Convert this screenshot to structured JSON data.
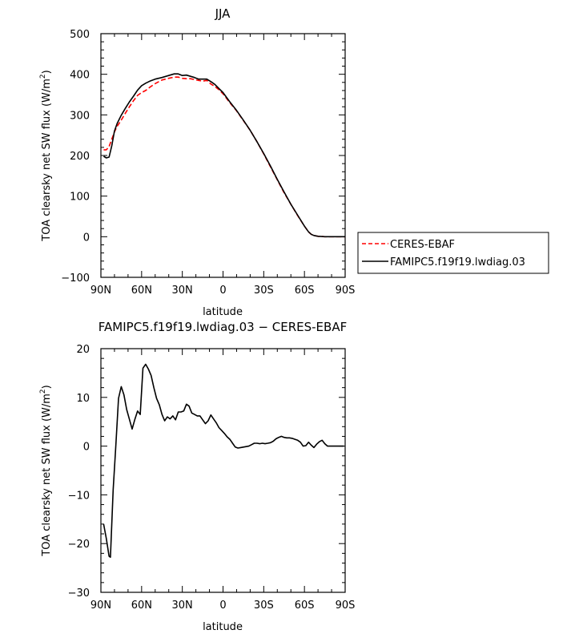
{
  "chart_data": [
    {
      "type": "line",
      "title": "JJA",
      "xlabel": "latitude",
      "ylabel_main": "TOA clearsky net SW flux (W/m",
      "ylabel_sup": "2",
      "ylabel_end": ")",
      "xlim": [
        90,
        -90
      ],
      "ylim": [
        -100,
        500
      ],
      "xticks": [
        90,
        60,
        30,
        0,
        -30,
        -60,
        -90
      ],
      "xtick_labels": [
        "90N",
        "60N",
        "30N",
        "0",
        "30S",
        "60S",
        "90S"
      ],
      "yticks": [
        -100,
        0,
        100,
        200,
        300,
        400,
        500
      ],
      "ytick_labels": [
        "−100",
        "0",
        "100",
        "200",
        "300",
        "400",
        "500"
      ],
      "legend": "right, outside",
      "series": [
        {
          "name": "CERES-EBAF",
          "color": "#ff0000",
          "dash": "dashed",
          "x": [
            88,
            86,
            84,
            82,
            80,
            78,
            75,
            72,
            69,
            66,
            63,
            60,
            57,
            54,
            50,
            45,
            40,
            36,
            33,
            30,
            27,
            24,
            21,
            18,
            15,
            12,
            9,
            6,
            3,
            0,
            -5,
            -10,
            -15,
            -20,
            -25,
            -30,
            -35,
            -40,
            -45,
            -50,
            -55,
            -60,
            -63,
            -65,
            -67,
            -70,
            -75,
            -80,
            -85,
            -90
          ],
          "y": [
            214,
            214,
            222,
            240,
            258,
            272,
            287,
            304,
            320,
            335,
            348,
            355,
            360,
            368,
            377,
            386,
            390,
            393,
            393,
            390,
            389,
            389,
            387,
            385,
            383,
            385,
            376,
            370,
            362,
            352,
            330,
            310,
            286,
            262,
            234,
            204,
            172,
            140,
            108,
            80,
            52,
            26,
            12,
            6,
            3,
            1,
            0,
            0,
            0,
            0
          ]
        },
        {
          "name": "FAMIPC5.f19f19.lwdiag.03",
          "color": "#000000",
          "dash": "solid",
          "x": [
            88,
            86,
            84,
            82,
            80,
            78,
            75,
            72,
            69,
            66,
            63,
            60,
            57,
            54,
            50,
            45,
            40,
            36,
            33,
            30,
            27,
            24,
            21,
            18,
            15,
            12,
            9,
            6,
            3,
            0,
            -5,
            -10,
            -15,
            -20,
            -25,
            -30,
            -35,
            -40,
            -45,
            -50,
            -55,
            -60,
            -63,
            -65,
            -67,
            -70,
            -75,
            -80,
            -85,
            -90
          ],
          "y": [
            198,
            194,
            196,
            224,
            260,
            279,
            299,
            316,
            332,
            346,
            361,
            372,
            378,
            383,
            388,
            392,
            397,
            401,
            401,
            397,
            398,
            395,
            392,
            388,
            388,
            388,
            382,
            375,
            365,
            355,
            332,
            311,
            287,
            262,
            234,
            205,
            174,
            141,
            110,
            80,
            53,
            26,
            12,
            6,
            3,
            1,
            0,
            0,
            0,
            0
          ]
        }
      ]
    },
    {
      "type": "line",
      "title": "FAMIPC5.f19f19.lwdiag.03 − CERES-EBAF",
      "xlabel": "latitude",
      "ylabel_main": "TOA clearsky net SW flux (W/m",
      "ylabel_sup": "2",
      "ylabel_end": ")",
      "xlim": [
        90,
        -90
      ],
      "ylim": [
        -30,
        20
      ],
      "xticks": [
        90,
        60,
        30,
        0,
        -30,
        -60,
        -90
      ],
      "xtick_labels": [
        "90N",
        "60N",
        "30N",
        "0",
        "30S",
        "60S",
        "90S"
      ],
      "yticks": [
        -30,
        -20,
        -10,
        0,
        10,
        20
      ],
      "ytick_labels": [
        "−30",
        "−20",
        "−10",
        "0",
        "10",
        "20"
      ],
      "series": [
        {
          "name": "",
          "color": "#000000",
          "dash": "solid",
          "x": [
            88,
            86,
            84,
            83,
            81,
            79,
            77,
            75,
            73,
            71,
            69,
            67,
            65,
            63,
            61,
            59,
            57,
            55,
            53,
            51,
            49,
            47,
            45,
            43,
            41,
            39,
            37,
            35,
            33,
            31,
            29,
            27,
            25,
            23,
            21,
            19,
            17,
            15,
            13,
            11,
            9,
            7,
            5,
            3,
            1,
            -1,
            -3,
            -5,
            -7,
            -9,
            -11,
            -13,
            -15,
            -17,
            -19,
            -21,
            -23,
            -25,
            -27,
            -29,
            -31,
            -33,
            -35,
            -37,
            -39,
            -41,
            -43,
            -45,
            -47,
            -49,
            -51,
            -53,
            -55,
            -57,
            -59,
            -61,
            -63,
            -65,
            -67,
            -69,
            -71,
            -73,
            -75,
            -77,
            -79,
            -81,
            -83,
            -85,
            -87,
            -89
          ],
          "y": [
            -16,
            -19,
            -22.6,
            -22.8,
            -9,
            0,
            9.8,
            12.2,
            10.5,
            7.5,
            5.5,
            3.5,
            5.5,
            7.2,
            6.5,
            16,
            16.8,
            15.8,
            14.5,
            12,
            9.8,
            8.5,
            6.5,
            5.2,
            6,
            5.6,
            6.2,
            5.4,
            7,
            7,
            7.2,
            8.6,
            8.2,
            6.8,
            6.5,
            6.2,
            6.2,
            5.4,
            4.6,
            5.2,
            6.4,
            5.6,
            4.8,
            3.8,
            3.2,
            2.6,
            1.9,
            1.4,
            0.6,
            -0.2,
            -0.4,
            -0.3,
            -0.2,
            -0.1,
            0,
            0.3,
            0.6,
            0.6,
            0.5,
            0.6,
            0.5,
            0.6,
            0.7,
            1,
            1.5,
            1.8,
            2.0,
            1.8,
            1.7,
            1.7,
            1.6,
            1.4,
            1.2,
            0.8,
            0,
            0.1,
            0.8,
            0.2,
            -0.3,
            0.4,
            0.9,
            1.2,
            0.5,
            0,
            0,
            0,
            0,
            0,
            0,
            0
          ]
        }
      ]
    }
  ]
}
